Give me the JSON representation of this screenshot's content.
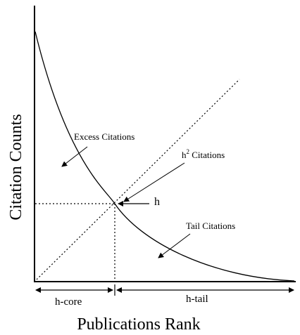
{
  "diagram": {
    "axes": {
      "y_label": "Citation Counts",
      "x_label": "Publications Rank"
    },
    "annotations": {
      "excess": "Excess Citations",
      "h2_base": "h",
      "h2_sup": "2",
      "h2_rest": " Citations",
      "h_marker": "h",
      "tail": "Tail Citations"
    },
    "spans": {
      "h_core": "h-core",
      "h_tail": "h-tail"
    },
    "colors": {
      "line": "#000000",
      "background": "#ffffff"
    }
  }
}
